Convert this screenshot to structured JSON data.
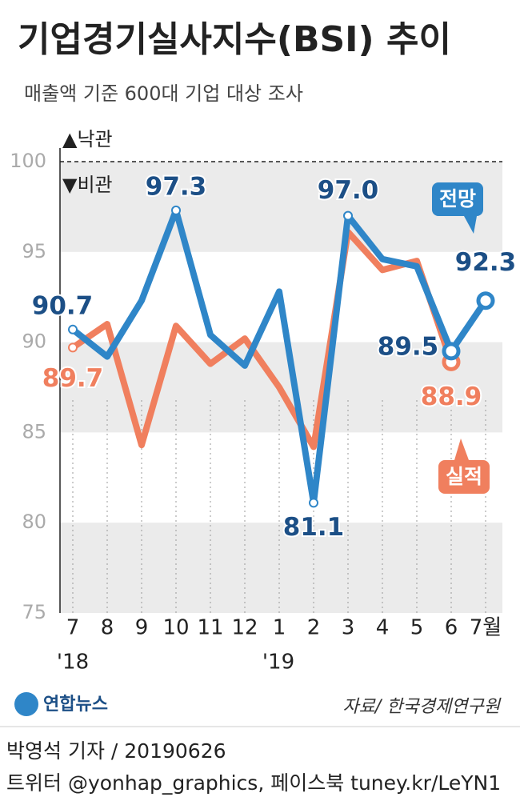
{
  "chart_data": {
    "type": "line",
    "title": "기업경기실사지수(BSI) 추이",
    "subtitle": "매출액 기준 600대 기업 대상 조사",
    "annotations": {
      "up": "▲낙관",
      "down": "▼비관",
      "year1": "'18",
      "year2": "'19"
    },
    "categories": [
      "7",
      "8",
      "9",
      "10",
      "11",
      "12",
      "1",
      "2",
      "3",
      "4",
      "5",
      "6",
      "7월"
    ],
    "series": [
      {
        "name": "실적",
        "color": "#f07f5e",
        "label_color": "#f07f5e",
        "values": [
          89.7,
          91.0,
          84.3,
          90.9,
          88.8,
          90.2,
          87.5,
          84.2,
          96.1,
          94.0,
          94.5,
          88.9,
          null
        ],
        "value_labels": [
          "89.7",
          null,
          null,
          null,
          null,
          null,
          null,
          null,
          null,
          null,
          null,
          "88.9",
          null
        ]
      },
      {
        "name": "전망",
        "color": "#2f86c8",
        "label_color": "#1c4f86",
        "values": [
          90.7,
          89.2,
          92.3,
          97.3,
          90.4,
          88.7,
          92.8,
          81.1,
          97.0,
          94.6,
          94.2,
          89.5,
          92.3
        ],
        "value_labels": [
          "90.7",
          null,
          null,
          "97.3",
          null,
          null,
          null,
          "81.1",
          "97.0",
          null,
          null,
          "89.5",
          "92.3"
        ]
      }
    ],
    "ylim": [
      75,
      100
    ],
    "yticks": [
      75,
      80,
      85,
      90,
      95,
      100
    ],
    "source": "자료/ 한국경제연구원",
    "logo": "연합뉴스"
  },
  "footer": {
    "byline": "박영석 기자 /  20190626",
    "social": "트위터 @yonhap_graphics, 페이스북 tuney.kr/LeYN1"
  }
}
